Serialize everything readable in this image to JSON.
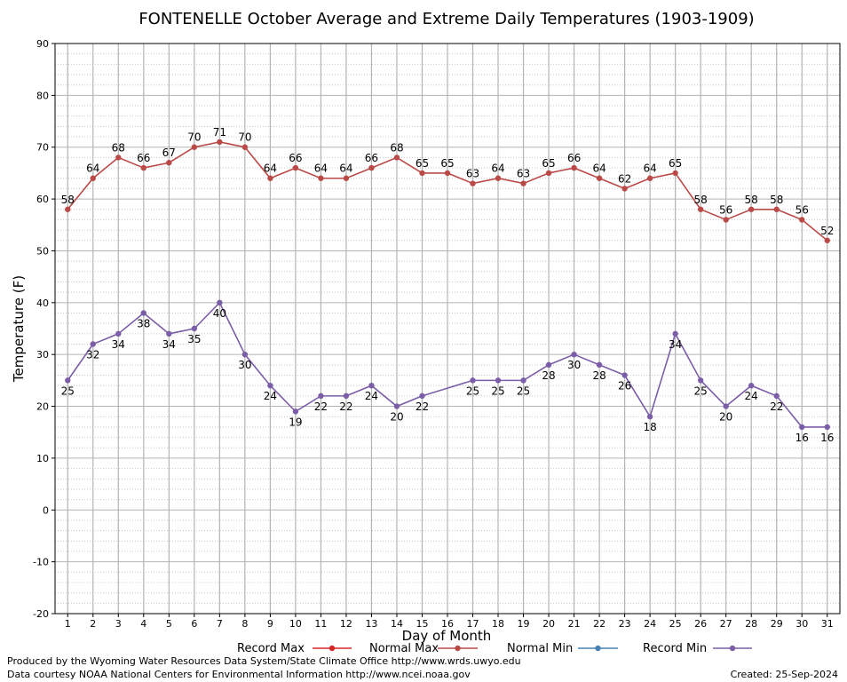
{
  "chart_data": {
    "type": "line",
    "title": "FONTENELLE October Average and Extreme Daily Temperatures (1903-1909)",
    "xlabel": "Day of Month",
    "ylabel": "Temperature (F)",
    "x": [
      1,
      2,
      3,
      4,
      5,
      6,
      7,
      8,
      9,
      10,
      11,
      12,
      13,
      14,
      15,
      16,
      17,
      18,
      19,
      20,
      21,
      22,
      23,
      24,
      25,
      26,
      27,
      28,
      29,
      30,
      31
    ],
    "xlim": [
      0.5,
      31.5
    ],
    "ylim": [
      -20,
      90
    ],
    "yticks": [
      -20,
      -10,
      0,
      10,
      20,
      30,
      40,
      50,
      60,
      70,
      80,
      90
    ],
    "grid": true,
    "legend_position": "bottom",
    "legend": [
      {
        "name": "Record Max",
        "color": "#d62728"
      },
      {
        "name": "Normal Max",
        "color": "#b94a48"
      },
      {
        "name": "Normal Min",
        "color": "#4682b4"
      },
      {
        "name": "Record Min",
        "color": "#7b5ea7"
      }
    ],
    "series": [
      {
        "name": "Normal Max",
        "color": "#b94a48",
        "values": [
          58,
          64,
          68,
          66,
          67,
          70,
          71,
          70,
          64,
          66,
          64,
          64,
          66,
          68,
          65,
          65,
          63,
          64,
          63,
          65,
          66,
          64,
          62,
          64,
          65,
          58,
          56,
          58,
          58,
          56,
          52
        ],
        "label_position": "above"
      },
      {
        "name": "Record Min",
        "color": "#7b5ea7",
        "values": [
          25,
          32,
          34,
          38,
          34,
          35,
          40,
          30,
          24,
          19,
          22,
          22,
          24,
          20,
          22,
          null,
          25,
          25,
          25,
          28,
          30,
          28,
          26,
          18,
          34,
          25,
          20,
          24,
          22,
          16,
          16
        ],
        "label_position": "below"
      }
    ]
  },
  "footer": {
    "left_line1": "Produced by the Wyoming Water Resources Data System/State Climate Office http://www.wrds.uwyo.edu",
    "left_line2": "Data courtesy NOAA National Centers for Environmental Information http://www.ncei.noaa.gov",
    "right": "Created:  25-Sep-2024"
  }
}
